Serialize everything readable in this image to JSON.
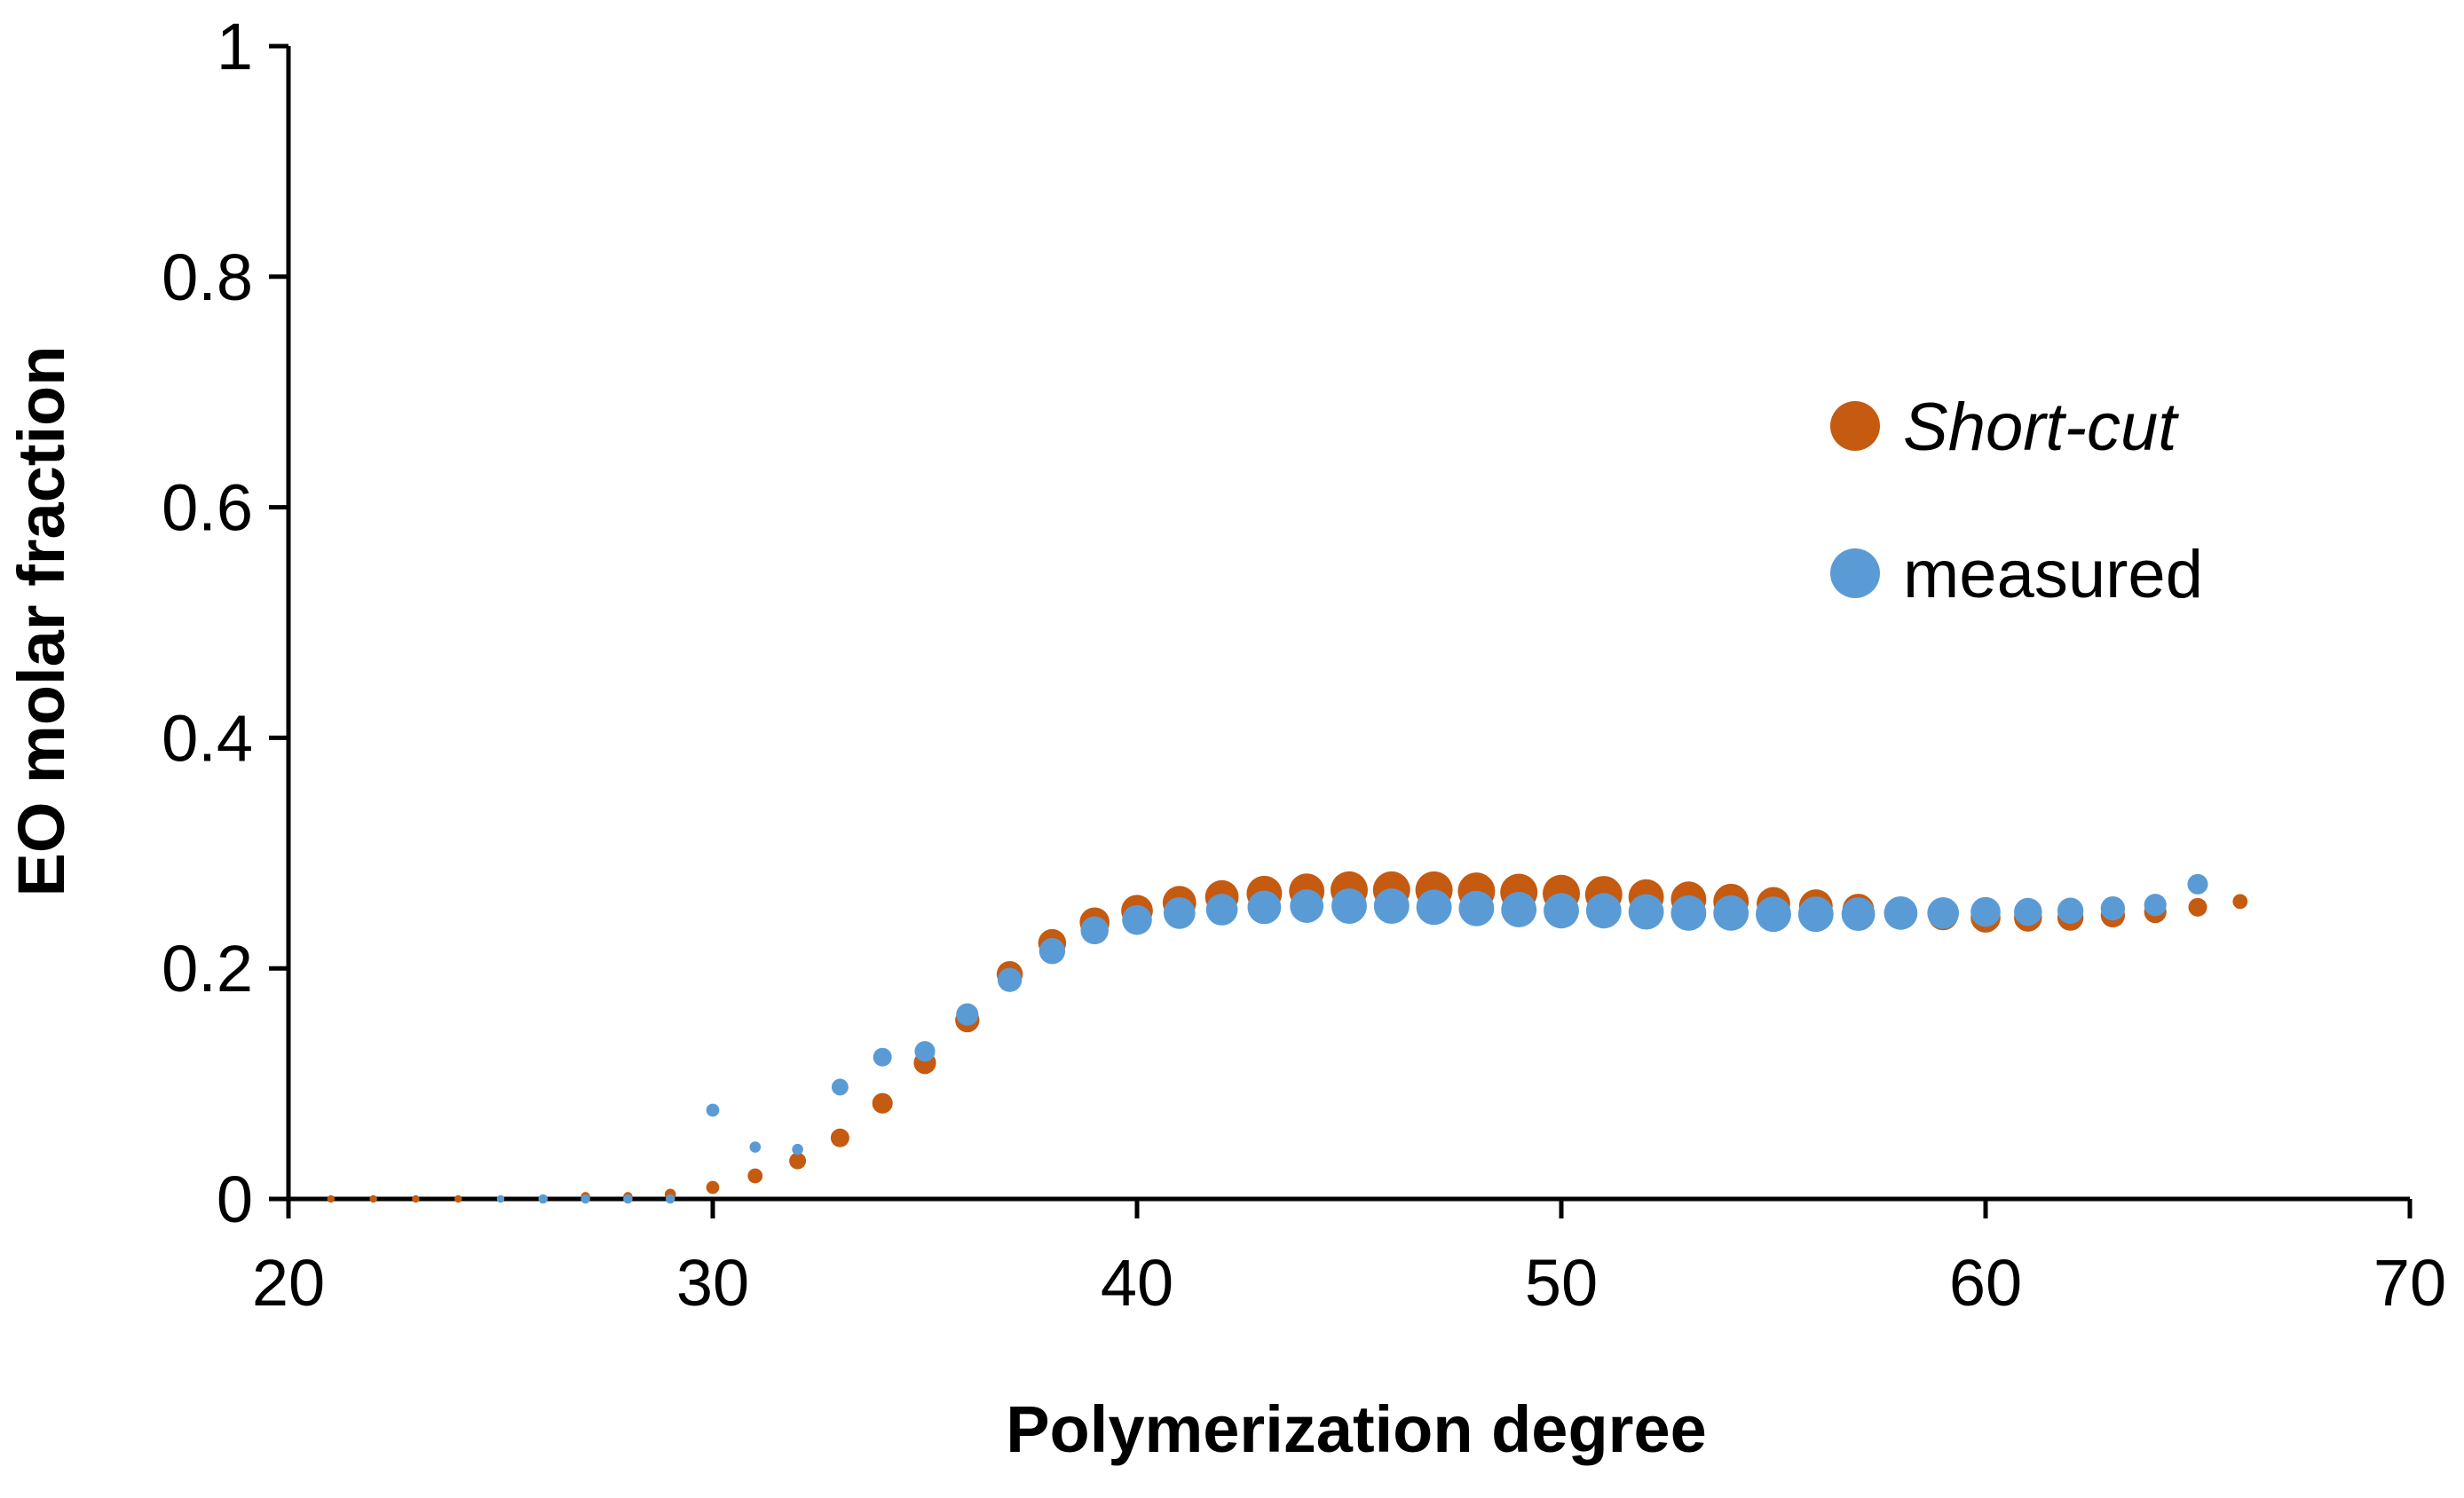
{
  "chart_data": {
    "type": "scatter",
    "title": "",
    "xlabel": "Polymerization degree",
    "ylabel": "EO molar fraction",
    "xlim": [
      20,
      70
    ],
    "ylim": [
      0,
      1
    ],
    "xticks": [
      "20",
      "30",
      "40",
      "50",
      "60",
      "70"
    ],
    "yticks": [
      "0",
      "0.2",
      "0.4",
      "0.6",
      "0.8",
      "1"
    ],
    "grid": false,
    "legend_position": "right",
    "series": [
      {
        "name": "Short-cut",
        "italic": true,
        "color": "#C55A11",
        "x": [
          21,
          22,
          23,
          24,
          25,
          26,
          27,
          28,
          29,
          30,
          31,
          32,
          33,
          34,
          35,
          36,
          37,
          38,
          39,
          40,
          41,
          42,
          43,
          44,
          45,
          46,
          47,
          48,
          49,
          50,
          51,
          52,
          53,
          54,
          55,
          56,
          57,
          58,
          59,
          60,
          61,
          62,
          63,
          64,
          65,
          66
        ],
        "y": [
          0,
          0,
          0,
          0,
          0,
          0,
          0.002,
          0.002,
          0.004,
          0.01,
          0.02,
          0.033,
          0.053,
          0.083,
          0.118,
          0.155,
          0.195,
          0.222,
          0.24,
          0.25,
          0.257,
          0.262,
          0.265,
          0.267,
          0.268,
          0.268,
          0.268,
          0.267,
          0.266,
          0.265,
          0.264,
          0.262,
          0.26,
          0.258,
          0.256,
          0.254,
          0.251,
          0.248,
          0.246,
          0.244,
          0.244,
          0.244,
          0.246,
          0.249,
          0.253,
          0.258
        ],
        "sizes": [
          4,
          4,
          4,
          4,
          4,
          4,
          5,
          5,
          6,
          7,
          8,
          9,
          10,
          11,
          12,
          13,
          14,
          15,
          16,
          17,
          18,
          18,
          19,
          19,
          20,
          20,
          20,
          20,
          20,
          20,
          20,
          19,
          19,
          19,
          18,
          18,
          17,
          17,
          16,
          16,
          15,
          14,
          13,
          12,
          10,
          8
        ]
      },
      {
        "name": "measured",
        "italic": false,
        "color": "#5B9BD5",
        "x": [
          25,
          26,
          27,
          28,
          29,
          30,
          31,
          32,
          33,
          34,
          35,
          36,
          37,
          38,
          39,
          40,
          41,
          42,
          43,
          44,
          45,
          46,
          47,
          48,
          49,
          50,
          51,
          52,
          53,
          54,
          55,
          56,
          57,
          58,
          59,
          60,
          61,
          62,
          63,
          64,
          65
        ],
        "y": [
          0,
          0,
          0,
          0,
          0,
          0.077,
          0.045,
          0.043,
          0.097,
          0.123,
          0.128,
          0.16,
          0.19,
          0.215,
          0.233,
          0.242,
          0.248,
          0.251,
          0.253,
          0.254,
          0.254,
          0.254,
          0.253,
          0.252,
          0.251,
          0.25,
          0.25,
          0.249,
          0.248,
          0.248,
          0.247,
          0.247,
          0.247,
          0.248,
          0.248,
          0.249,
          0.249,
          0.25,
          0.252,
          0.255,
          0.273
        ],
        "sizes": [
          4,
          5,
          5,
          5,
          5,
          7,
          6,
          6,
          9,
          10,
          11,
          12,
          13,
          14,
          15,
          16,
          17,
          17,
          18,
          18,
          19,
          19,
          19,
          19,
          19,
          19,
          19,
          19,
          19,
          19,
          19,
          19,
          18,
          18,
          17,
          16,
          15,
          14,
          13,
          12,
          11
        ]
      }
    ]
  }
}
